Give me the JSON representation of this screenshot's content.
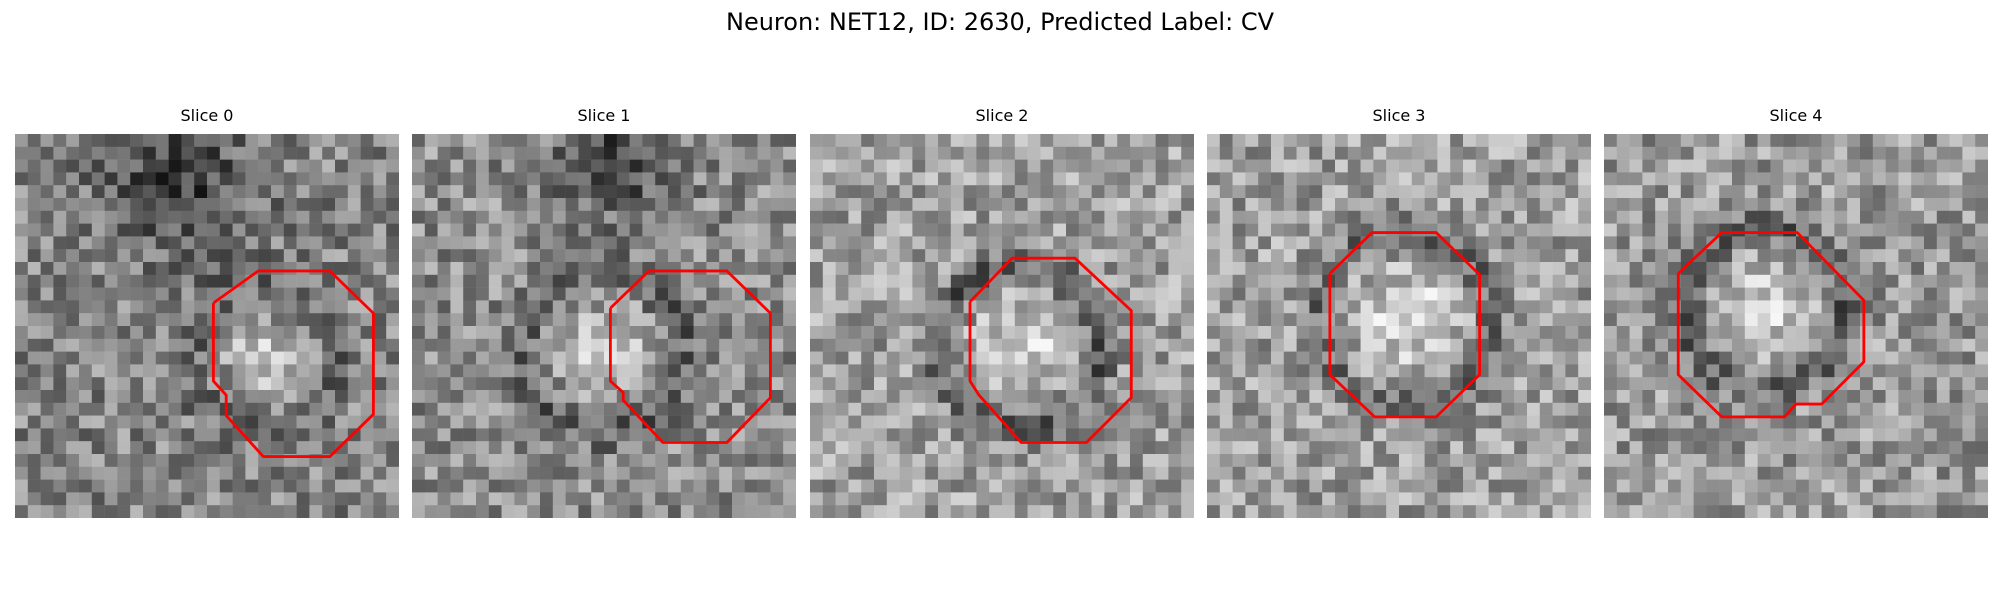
{
  "figure": {
    "title": "Neuron: NET12, ID: 2630, Predicted Label: CV"
  },
  "contour_color": "#ff0000",
  "colormap": "gray",
  "panels": [
    {
      "title": "Slice 0"
    },
    {
      "title": "Slice 1"
    },
    {
      "title": "Slice 2"
    },
    {
      "title": "Slice 3"
    },
    {
      "title": "Slice 4"
    }
  ]
}
